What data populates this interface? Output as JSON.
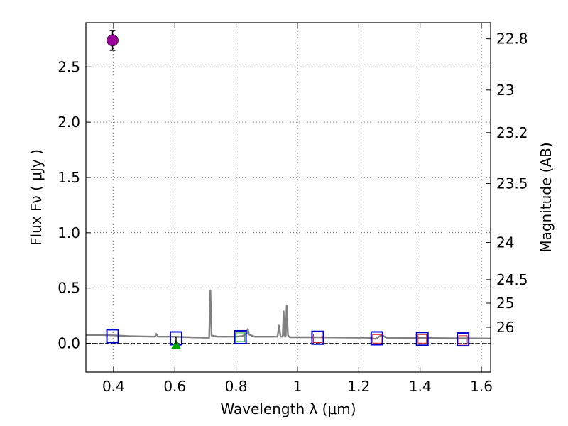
{
  "chart_data": {
    "type": "scatter",
    "xlabel": "Wavelength  λ (μm)",
    "ylabel": "Flux  Fν  ( μJy )",
    "ylabel_right": "Magnitude (AB)",
    "xlim": [
      0.31,
      1.63
    ],
    "ylim": [
      -0.26,
      2.9
    ],
    "grid": true,
    "x_ticks": [
      0.4,
      0.6,
      0.8,
      1.0,
      1.2,
      1.4,
      1.6
    ],
    "x_tick_labels": [
      "0.4",
      "0.6",
      "0.8",
      "1",
      "1.2",
      "1.4",
      "1.6"
    ],
    "y_ticks": [
      0.0,
      0.5,
      1.0,
      1.5,
      2.0,
      2.5
    ],
    "y_tick_labels": [
      "0.0",
      "0.5",
      "1.0",
      "1.5",
      "2.0",
      "2.5"
    ],
    "right_ticks": [
      {
        "label": "22.8",
        "mag": 22.8
      },
      {
        "label": "23",
        "mag": 23.0
      },
      {
        "label": "23.2",
        "mag": 23.2
      },
      {
        "label": "23.5",
        "mag": 23.5
      },
      {
        "label": "24",
        "mag": 24.0
      },
      {
        "label": "24.5",
        "mag": 24.5
      },
      {
        "label": "25",
        "mag": 25.0
      },
      {
        "label": "26",
        "mag": 26.0
      }
    ],
    "colors": {
      "model": "#808080",
      "observed": "#990099",
      "model_photometry": "#0000cc",
      "upper_limit": "#00aa00",
      "green_box": "#22aa22",
      "red_box": "#dd2222",
      "errorbar": "#000000"
    },
    "series": [
      {
        "name": "model spectrum",
        "type": "line",
        "points": [
          [
            0.31,
            0.075
          ],
          [
            0.36,
            0.075
          ],
          [
            0.4,
            0.072
          ],
          [
            0.45,
            0.065
          ],
          [
            0.5,
            0.062
          ],
          [
            0.535,
            0.06
          ],
          [
            0.54,
            0.085
          ],
          [
            0.545,
            0.06
          ],
          [
            0.6,
            0.06
          ],
          [
            0.65,
            0.055
          ],
          [
            0.7,
            0.05
          ],
          [
            0.712,
            0.05
          ],
          [
            0.716,
            0.48
          ],
          [
            0.72,
            0.07
          ],
          [
            0.74,
            0.06
          ],
          [
            0.78,
            0.06
          ],
          [
            0.8,
            0.06
          ],
          [
            0.82,
            0.065
          ],
          [
            0.835,
            0.09
          ],
          [
            0.838,
            0.13
          ],
          [
            0.842,
            0.08
          ],
          [
            0.86,
            0.06
          ],
          [
            0.935,
            0.06
          ],
          [
            0.94,
            0.16
          ],
          [
            0.945,
            0.06
          ],
          [
            0.952,
            0.06
          ],
          [
            0.955,
            0.29
          ],
          [
            0.958,
            0.07
          ],
          [
            0.962,
            0.07
          ],
          [
            0.965,
            0.34
          ],
          [
            0.969,
            0.07
          ],
          [
            0.975,
            0.055
          ],
          [
            1.02,
            0.055
          ],
          [
            1.07,
            0.055
          ],
          [
            1.15,
            0.052
          ],
          [
            1.23,
            0.05
          ],
          [
            1.255,
            0.04
          ],
          [
            1.275,
            0.075
          ],
          [
            1.29,
            0.05
          ],
          [
            1.4,
            0.048
          ],
          [
            1.5,
            0.045
          ],
          [
            1.63,
            0.043
          ]
        ]
      },
      {
        "name": "observed detection",
        "type": "errorbar",
        "points": [
          {
            "x": 0.397,
            "y": 2.74,
            "err": 0.09
          }
        ]
      },
      {
        "name": "model photometry",
        "type": "square",
        "points": [
          [
            0.397,
            0.065
          ],
          [
            0.604,
            0.045
          ],
          [
            0.814,
            0.055
          ],
          [
            1.066,
            0.05
          ],
          [
            1.259,
            0.045
          ],
          [
            1.407,
            0.04
          ],
          [
            1.54,
            0.035
          ]
        ]
      },
      {
        "name": "inner boxes green",
        "type": "square-small",
        "points": [
          [
            0.814,
            0.055
          ]
        ]
      },
      {
        "name": "inner boxes red",
        "type": "square-small",
        "points": [
          [
            1.066,
            0.045
          ],
          [
            1.259,
            0.04
          ],
          [
            1.407,
            0.04
          ],
          [
            1.54,
            0.03
          ]
        ]
      },
      {
        "name": "upper limit",
        "type": "triangle",
        "points": [
          [
            0.604,
            -0.02
          ]
        ]
      }
    ]
  }
}
